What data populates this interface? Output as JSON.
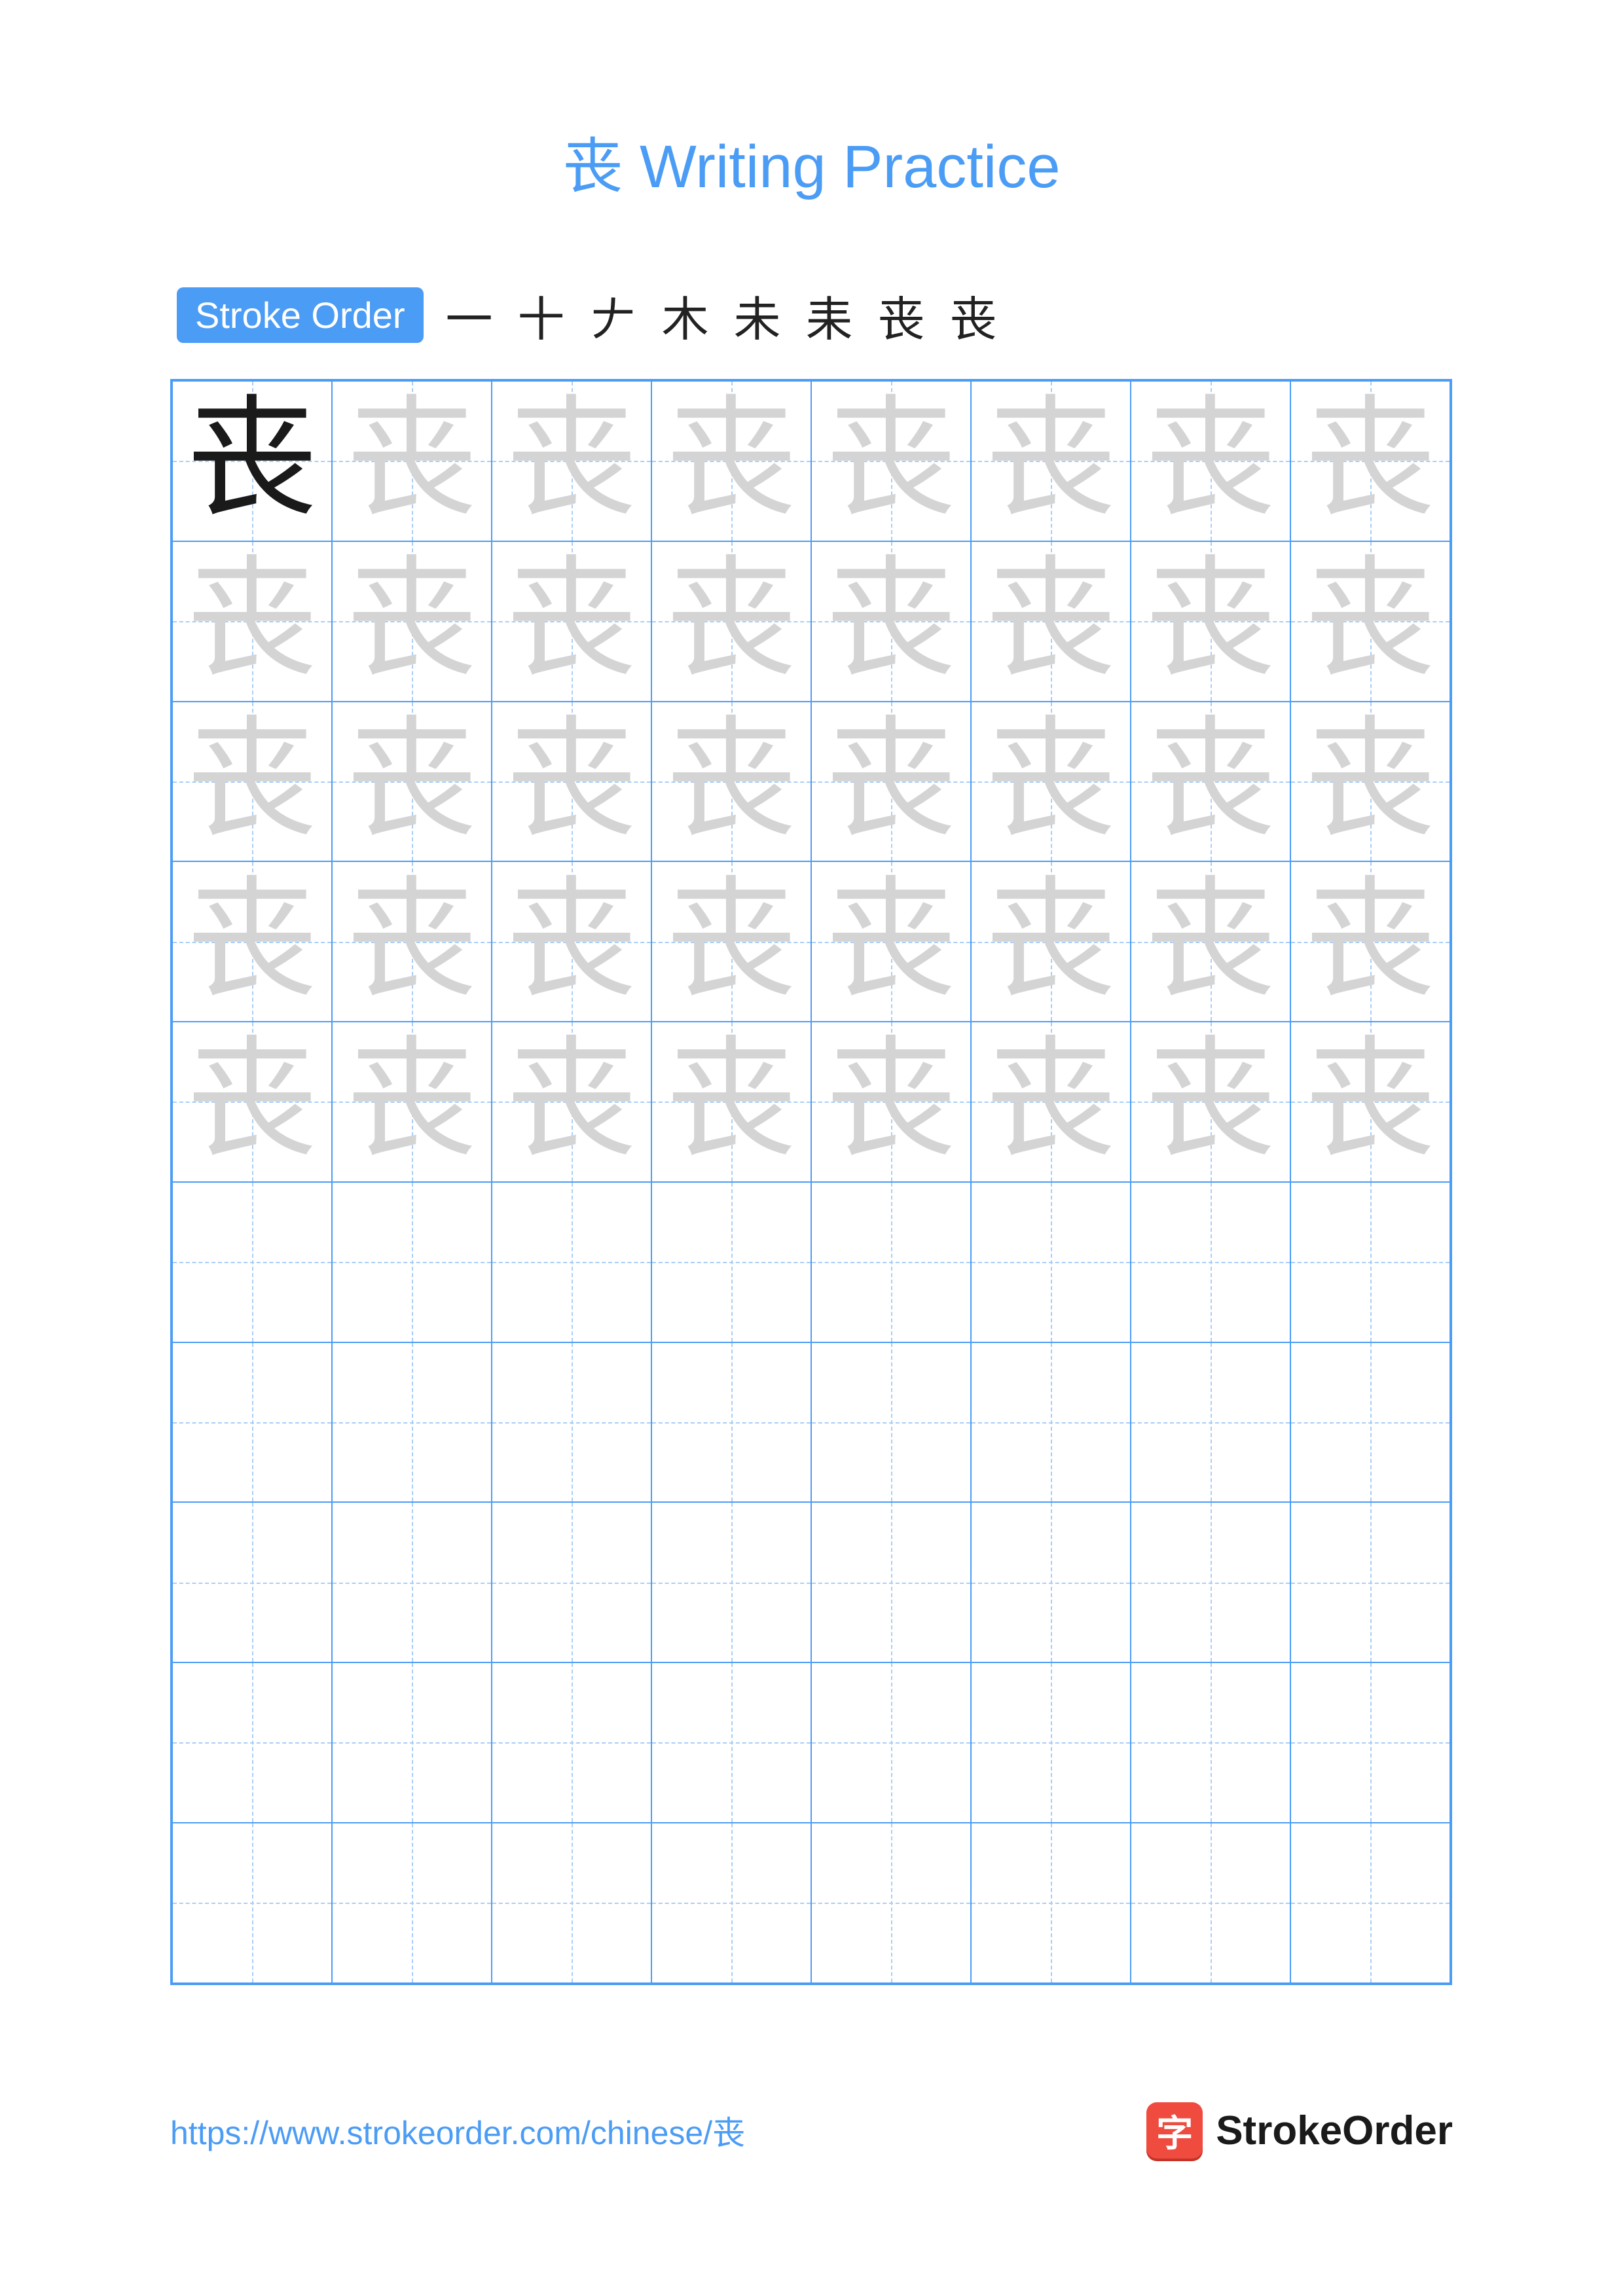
{
  "title": "丧 Writing Practice",
  "character": "丧",
  "strokeOrder": {
    "label": "Stroke Order",
    "steps": [
      "一",
      "十",
      "𠂇",
      "木",
      "未",
      "耒",
      "丧",
      "丧"
    ]
  },
  "grid": {
    "rows": 10,
    "cols": 8,
    "ghostRows": 5,
    "solidCell": {
      "row": 0,
      "col": 0
    },
    "colors": {
      "border": "#4b9cf5",
      "guide": "#a8cef9",
      "solidChar": "#1a1a1a",
      "ghostChar": "#d4d4d4"
    },
    "cellSize": 244.75
  },
  "footer": {
    "url": "https://www.strokeorder.com/chinese/丧",
    "brandIcon": "字",
    "brandText": "StrokeOrder"
  },
  "colors": {
    "accent": "#4b9cf5",
    "brandRed": "#ef4b3e",
    "text": "#1a1a1a",
    "background": "#ffffff"
  },
  "typography": {
    "titleSize": 92,
    "badgeSize": 56,
    "charSize": 200,
    "urlSize": 50,
    "brandSize": 62
  }
}
